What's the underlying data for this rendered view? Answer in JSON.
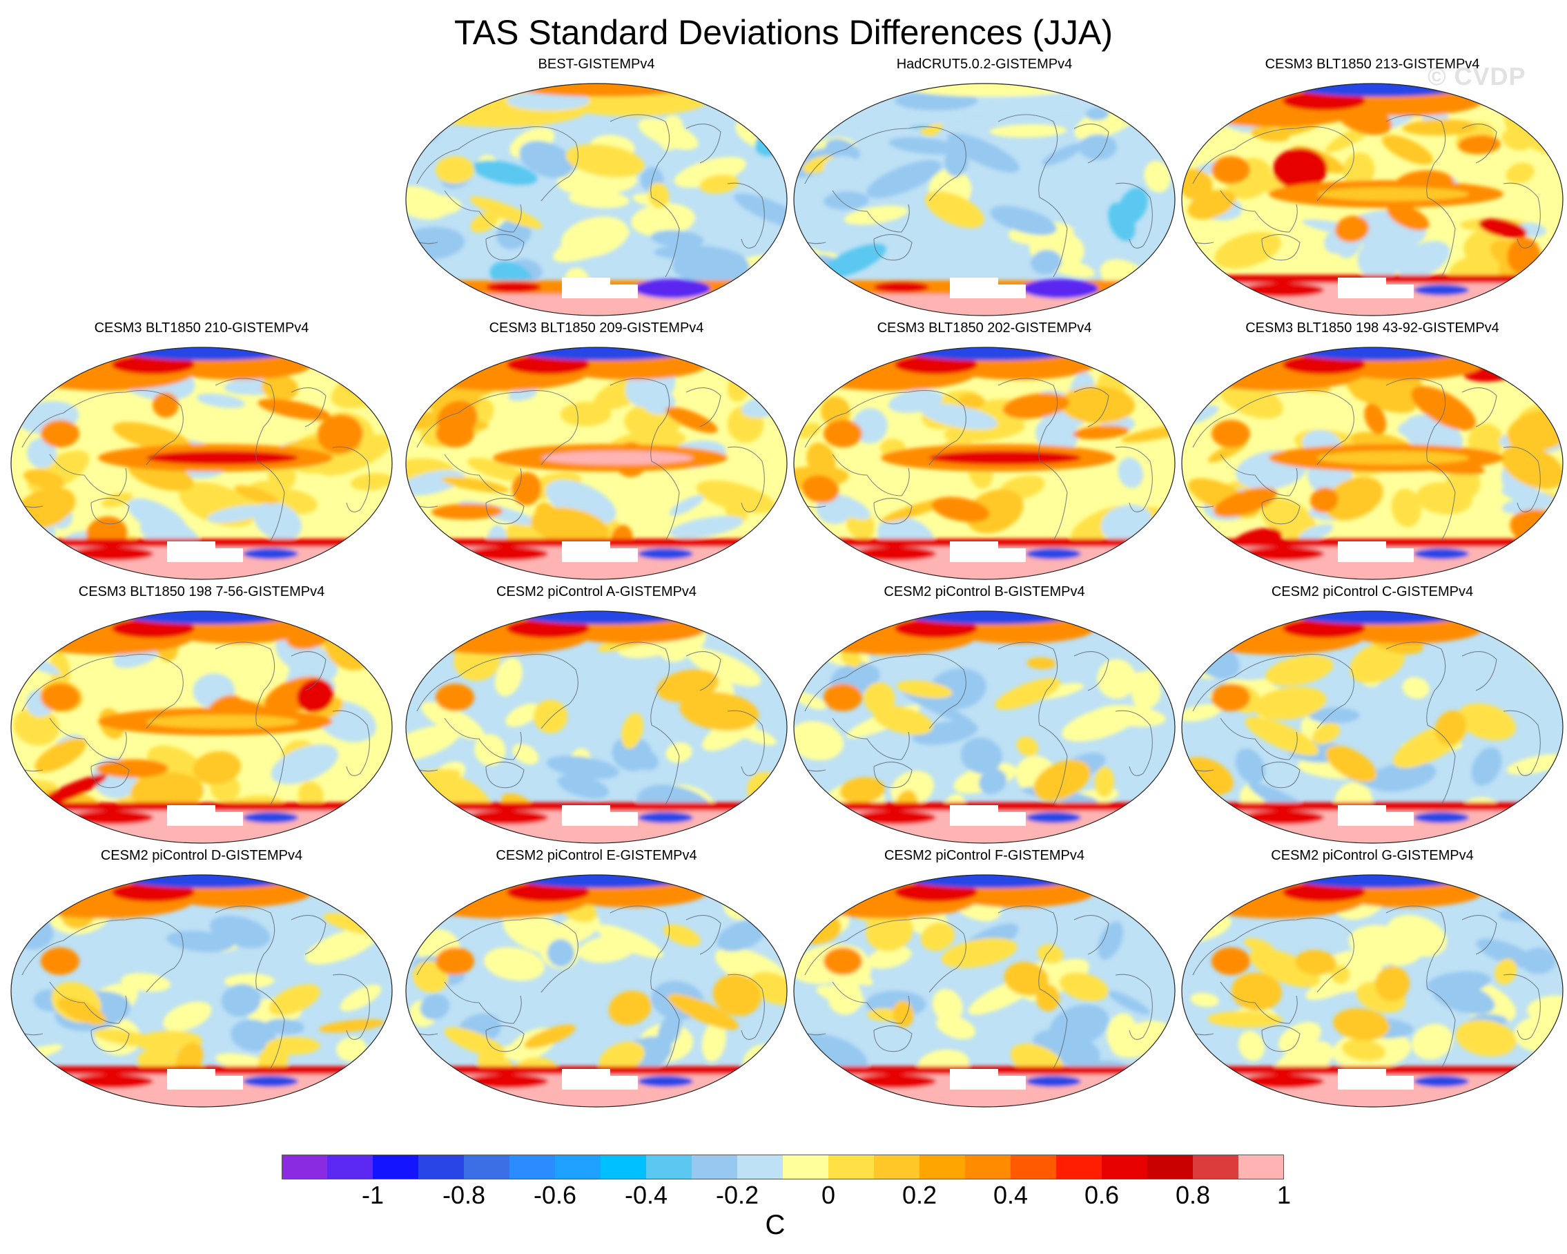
{
  "title": "TAS Standard Deviations Differences (JJA)",
  "watermark": "© CVDP",
  "panels": [
    {
      "title": "BEST-GISTEMPv4",
      "style": "obs"
    },
    {
      "title": "HadCRUT5.0.2-GISTEMPv4",
      "style": "obs2"
    },
    {
      "title": "CESM3 BLT1850 213-GISTEMPv4",
      "style": "hot"
    },
    {
      "title": "CESM3 BLT1850 210-GISTEMPv4",
      "style": "enso"
    },
    {
      "title": "CESM3 BLT1850 209-GISTEMPv4",
      "style": "enso2"
    },
    {
      "title": "CESM3 BLT1850 202-GISTEMPv4",
      "style": "enso"
    },
    {
      "title": "CESM3 BLT1850 198 43-92-GISTEMPv4",
      "style": "hot"
    },
    {
      "title": "CESM3 BLT1850 198 7-56-GISTEMPv4",
      "style": "hot"
    },
    {
      "title": "CESM2 piControl A-GISTEMPv4",
      "style": "cesm2"
    },
    {
      "title": "CESM2 piControl B-GISTEMPv4",
      "style": "cesm2"
    },
    {
      "title": "CESM2 piControl C-GISTEMPv4",
      "style": "cesm2"
    },
    {
      "title": "CESM2 piControl D-GISTEMPv4",
      "style": "cesm2"
    },
    {
      "title": "CESM2 piControl E-GISTEMPv4",
      "style": "cesm2"
    },
    {
      "title": "CESM2 piControl F-GISTEMPv4",
      "style": "cesm2"
    },
    {
      "title": "CESM2 piControl G-GISTEMPv4",
      "style": "cesm2"
    }
  ],
  "colorbar": {
    "units": "C",
    "tick_labels": [
      "-1",
      "-0.8",
      "-0.6",
      "-0.4",
      "-0.2",
      "0",
      "0.2",
      "0.4",
      "0.6",
      "0.8",
      "1"
    ],
    "colors": [
      "#8a2be2",
      "#5a28f0",
      "#1414ff",
      "#2846e6",
      "#3c6ee6",
      "#2a8cff",
      "#1ea0ff",
      "#00bfff",
      "#5ac8f0",
      "#96c8f0",
      "#bee1f5",
      "#ffff9b",
      "#ffe146",
      "#ffc828",
      "#ffa500",
      "#ff8c00",
      "#ff5a00",
      "#ff1e00",
      "#e60000",
      "#c80000",
      "#dc3c3c",
      "#ffb4b4"
    ]
  }
}
